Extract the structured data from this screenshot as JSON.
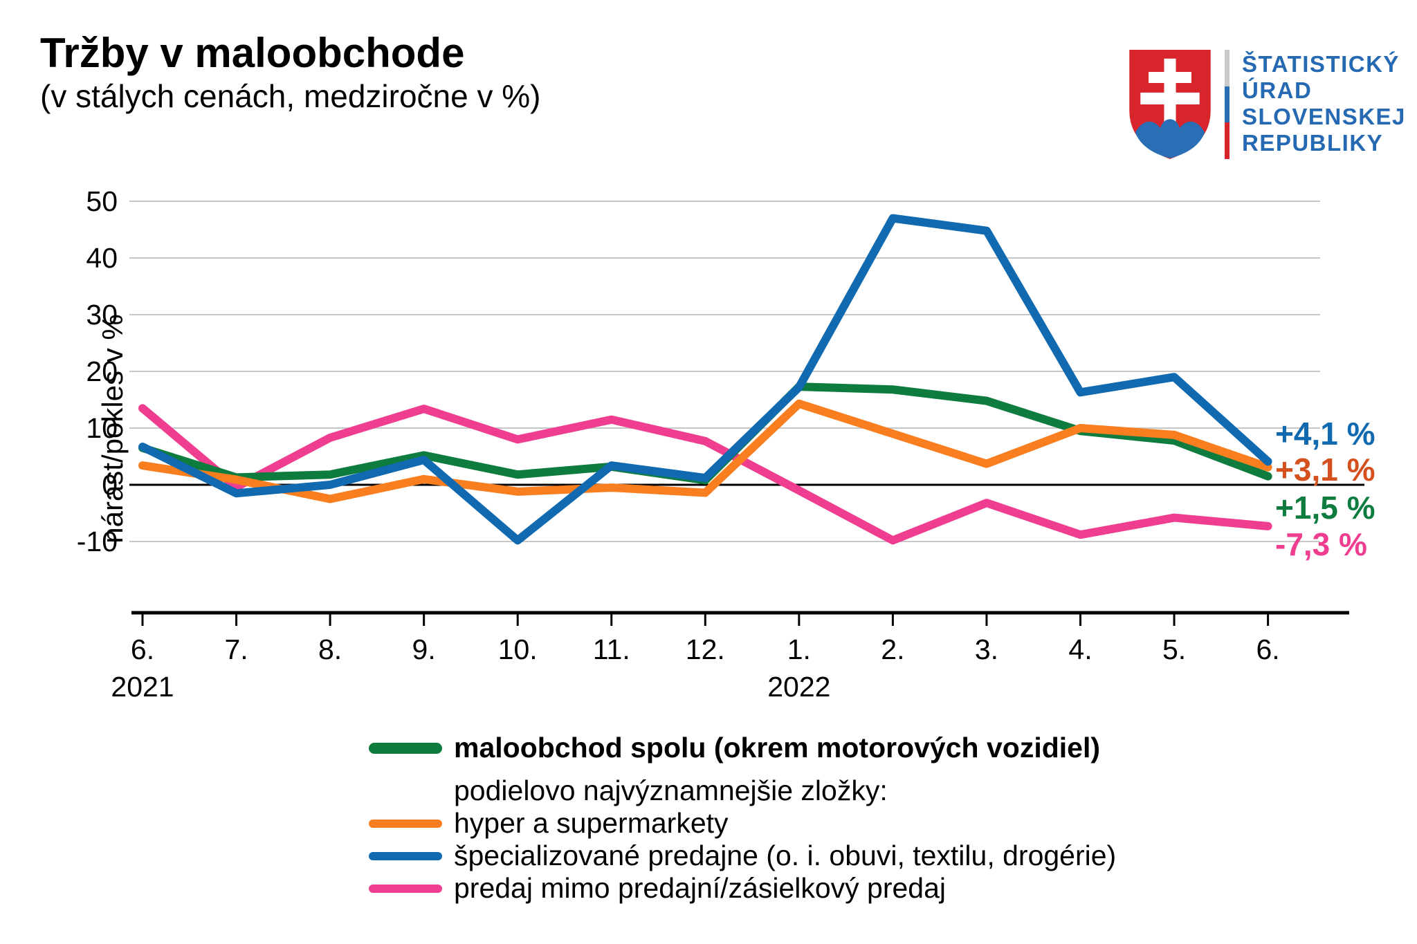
{
  "header": {
    "title": "Tržby v maloobchode",
    "subtitle": "(v stálych cenách, medziročne v %)"
  },
  "logo": {
    "lines": [
      "ŠTATISTICKÝ",
      "ÚRAD",
      "SLOVENSKEJ",
      "REPUBLIKY"
    ],
    "text_color": "#2469b1",
    "shield_red": "#d8252c",
    "shield_blue": "#2a6eb5",
    "bar_colors": [
      "#c9c9c9",
      "#2a6eb5",
      "#d8252c"
    ]
  },
  "chart_data": {
    "type": "line",
    "ylabel": "nárast/pokles v %",
    "y_ticks": [
      50,
      40,
      30,
      20,
      10,
      0,
      -10
    ],
    "ylim": [
      -22,
      51
    ],
    "grid": "horizontal",
    "x_tick_labels": [
      "6.",
      "7.",
      "8.",
      "9.",
      "10.",
      "11.",
      "12.",
      "1.",
      "2.",
      "3.",
      "4.",
      "5.",
      "6."
    ],
    "year_labels": [
      {
        "text": "2021",
        "tick_index": 0
      },
      {
        "text": "2022",
        "tick_index": 7
      }
    ],
    "series": [
      {
        "name": "maloobchod spolu (okrem motorových vozidiel)",
        "color": "#0E7C3E",
        "values": [
          6.5,
          1.3,
          1.8,
          5.2,
          1.8,
          3.2,
          0.8,
          17.3,
          16.8,
          14.8,
          9.5,
          7.8,
          1.5
        ]
      },
      {
        "name": "hyper a supermarkety",
        "color": "#F87E1F",
        "values": [
          3.4,
          0.9,
          -2.5,
          1.0,
          -1.2,
          -0.5,
          -1.4,
          14.3,
          9.0,
          3.7,
          10.0,
          8.8,
          3.1
        ]
      },
      {
        "name": "špecializované predajne (o. i. obuvi, textilu, drogérie)",
        "color": "#1169B0",
        "values": [
          6.7,
          -1.5,
          0.0,
          4.4,
          -9.8,
          3.4,
          1.2,
          17.2,
          47.0,
          44.8,
          16.3,
          19.0,
          4.1
        ]
      },
      {
        "name": "predaj mimo predajní/zásielkový predaj",
        "color": "#EF3E8F",
        "values": [
          13.5,
          -0.4,
          8.3,
          13.4,
          8.0,
          11.5,
          7.7,
          -1.0,
          -9.8,
          -3.2,
          -8.8,
          -5.8,
          -7.3
        ]
      }
    ],
    "end_labels": [
      {
        "text": "+4,1 %",
        "color": "#1169B0",
        "value": 4.1
      },
      {
        "text": "+3,1 %",
        "color": "#D4511E",
        "value": 3.1
      },
      {
        "text": "+1,5 %",
        "color": "#0E7C3E",
        "value": 1.5
      },
      {
        "text": "-7,3 %",
        "color": "#EF3E8F",
        "value": -7.3
      }
    ]
  },
  "legend": {
    "rows": [
      {
        "swatch_color": "#0E7C3E",
        "thick": true,
        "bold": true,
        "label": "maloobchod spolu (okrem motorových vozidiel)"
      },
      {
        "swatch_color": null,
        "thick": false,
        "bold": false,
        "label": "podielovo najvýznamnejšie zložky:"
      },
      {
        "swatch_color": "#F87E1F",
        "thick": false,
        "bold": false,
        "label": "hyper a supermarkety"
      },
      {
        "swatch_color": "#1169B0",
        "thick": false,
        "bold": false,
        "label": "špecializované predajne (o. i. obuvi, textilu, drogérie)"
      },
      {
        "swatch_color": "#EF3E8F",
        "thick": false,
        "bold": false,
        "label": "predaj mimo predajní/zásielkový predaj"
      }
    ]
  },
  "colors": {
    "grid": "#c6c6c6",
    "axis": "#000000"
  }
}
